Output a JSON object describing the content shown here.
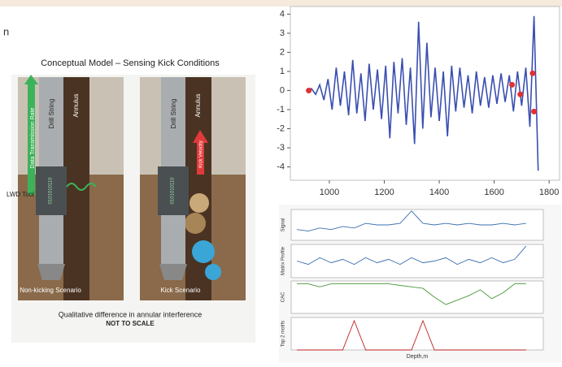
{
  "header_fragment": "n",
  "left_panel": {
    "title": "Conceptual Model – Sensing Kick Conditions",
    "data_rate": "Data Transmission Rate",
    "drill_string_left": "Drill String",
    "annulus_left": "Annulus",
    "drill_string_right": "Drill String",
    "annulus_right": "Annulus",
    "kick_velocity": "Kick Velocity",
    "lwd_tool": "LWD Tool",
    "binary_left": "0101010110",
    "binary_right": "0101010110",
    "scenario_left": "Non-kicking Scenario",
    "scenario_right": "Kick Scenario",
    "caption": "Qualitative difference in annular interference",
    "note": "NOT TO SCALE"
  },
  "chart_data": [
    {
      "type": "line",
      "xlim": [
        858,
        1838
      ],
      "ylim": [
        -4.7,
        4.4
      ],
      "xticks": [
        1000,
        1200,
        1400,
        1600,
        1800
      ],
      "yticks": [
        -4,
        -3,
        -2,
        -1,
        0,
        1,
        2,
        3,
        4
      ],
      "series": [
        {
          "style": "line",
          "color": "#3a4fb0",
          "x": [
            920,
            935,
            950,
            965,
            980,
            995,
            1010,
            1025,
            1040,
            1055,
            1070,
            1085,
            1100,
            1115,
            1130,
            1145,
            1160,
            1175,
            1190,
            1205,
            1220,
            1235,
            1250,
            1265,
            1280,
            1295,
            1310,
            1325,
            1340,
            1355,
            1370,
            1385,
            1400,
            1415,
            1430,
            1445,
            1460,
            1475,
            1490,
            1505,
            1520,
            1535,
            1550,
            1565,
            1580,
            1595,
            1610,
            1625,
            1640,
            1655,
            1670,
            1685,
            1700,
            1715,
            1730,
            1745,
            1760
          ],
          "values": [
            0,
            0.1,
            -0.2,
            0.3,
            -0.5,
            0.6,
            -1.0,
            1.2,
            -0.8,
            1.0,
            -1.3,
            1.6,
            -1.2,
            0.9,
            -1.6,
            1.4,
            -1.0,
            1.1,
            -1.5,
            1.3,
            -2.5,
            1.5,
            -1.2,
            1.7,
            -1.8,
            1.2,
            -2.8,
            3.6,
            -2.0,
            2.5,
            -1.4,
            1.2,
            -1.6,
            1.0,
            -2.4,
            1.3,
            -1.1,
            1.2,
            -0.9,
            0.8,
            -1.2,
            1.0,
            -0.8,
            0.7,
            -0.9,
            0.8,
            -0.7,
            0.9,
            -0.6,
            0.8,
            -1.1,
            1.0,
            -0.8,
            1.2,
            -1.9,
            3.9,
            -4.2
          ]
        },
        {
          "style": "points",
          "color": "#e03030",
          "x": [
            925,
            1665,
            1695,
            1740,
            1745
          ],
          "values": [
            0,
            0.3,
            -0.2,
            0.9,
            -1.1
          ]
        }
      ]
    },
    {
      "type": "line",
      "ylabel": "Signal",
      "xlim": [
        -20,
        860
      ],
      "ylim": [
        -0.5,
        1.5
      ],
      "color": "#3a6fb0",
      "x": [
        0,
        40,
        80,
        120,
        160,
        200,
        240,
        280,
        320,
        360,
        400,
        440,
        480,
        520,
        560,
        600,
        640,
        680,
        720,
        760,
        800
      ],
      "values": [
        0.2,
        0.1,
        0.3,
        0.2,
        0.4,
        0.3,
        0.6,
        0.5,
        0.5,
        0.6,
        1.4,
        0.6,
        0.5,
        0.6,
        0.5,
        0.6,
        0.5,
        0.5,
        0.6,
        0.5,
        0.6
      ]
    },
    {
      "type": "line",
      "ylabel": "Matrix Profile",
      "xlim": [
        -20,
        860
      ],
      "ylim": [
        0,
        2
      ],
      "color": "#3a6fb0",
      "x": [
        0,
        40,
        80,
        120,
        160,
        200,
        240,
        280,
        320,
        360,
        400,
        440,
        480,
        520,
        560,
        600,
        640,
        680,
        720,
        760,
        800
      ],
      "values": [
        1.0,
        0.8,
        1.2,
        0.9,
        1.1,
        0.8,
        1.2,
        0.9,
        1.1,
        0.8,
        1.2,
        0.9,
        1.0,
        1.2,
        0.8,
        1.1,
        0.9,
        1.2,
        0.9,
        1.1,
        1.9
      ]
    },
    {
      "type": "line",
      "ylabel": "CAC",
      "xlim": [
        -20,
        860
      ],
      "ylim": [
        0,
        1.1
      ],
      "color": "#4a9a3a",
      "x": [
        0,
        40,
        80,
        120,
        160,
        200,
        240,
        280,
        320,
        360,
        400,
        440,
        480,
        520,
        560,
        600,
        640,
        680,
        720,
        760,
        800
      ],
      "values": [
        1,
        1,
        0.9,
        1,
        1,
        1,
        1,
        1,
        1,
        0.95,
        0.9,
        0.85,
        0.55,
        0.3,
        0.45,
        0.6,
        0.8,
        0.5,
        0.7,
        1,
        1
      ]
    },
    {
      "type": "line",
      "ylabel": "Top 2 motifs",
      "xlabel": "Depth,m",
      "xlim": [
        -20,
        860
      ],
      "ylim": [
        0,
        1
      ],
      "color": "#c02020",
      "x": [
        0,
        40,
        80,
        120,
        160,
        200,
        240,
        280,
        320,
        360,
        400,
        440,
        480,
        520,
        560,
        600,
        640,
        680,
        720,
        760,
        800
      ],
      "values": [
        0,
        0,
        0,
        0,
        0,
        0.9,
        0,
        0,
        0,
        0,
        0,
        0.9,
        0,
        0,
        0,
        0,
        0,
        0,
        0,
        0,
        0
      ]
    }
  ]
}
